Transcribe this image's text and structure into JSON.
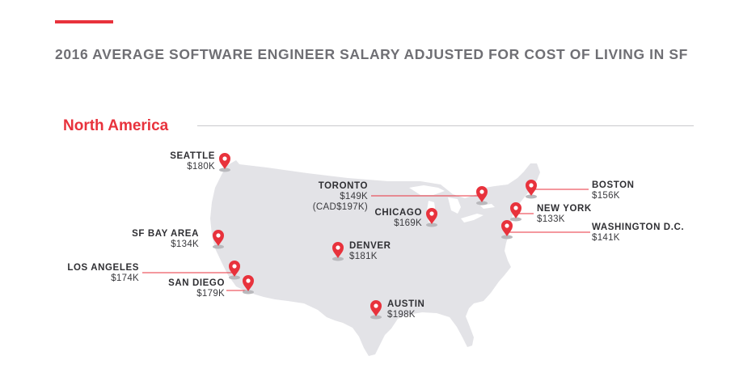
{
  "header": {
    "title": "2016 AVERAGE SOFTWARE ENGINEER SALARY ADJUSTED FOR COST OF LIVING IN SF"
  },
  "region": {
    "name": "North America"
  },
  "colors": {
    "accent": "#e8323c",
    "map_fill": "#e3e3e7",
    "text": "#3a3a3e",
    "title": "#6f6f74"
  },
  "cities": [
    {
      "id": "seattle",
      "name": "SEATTLE",
      "salary": "$180K"
    },
    {
      "id": "sf-bay-area",
      "name": "SF BAY AREA",
      "salary": "$134K"
    },
    {
      "id": "los-angeles",
      "name": "LOS ANGELES",
      "salary": "$174K"
    },
    {
      "id": "san-diego",
      "name": "SAN DIEGO",
      "salary": "$179K"
    },
    {
      "id": "denver",
      "name": "DENVER",
      "salary": "$181K"
    },
    {
      "id": "austin",
      "name": "AUSTIN",
      "salary": "$198K"
    },
    {
      "id": "chicago",
      "name": "CHICAGO",
      "salary": "$169K"
    },
    {
      "id": "toronto",
      "name": "TORONTO",
      "salary": "$149K",
      "salary_local": "(CAD$197K)"
    },
    {
      "id": "boston",
      "name": "BOSTON",
      "salary": "$156K"
    },
    {
      "id": "new-york",
      "name": "NEW YORK",
      "salary": "$133K"
    },
    {
      "id": "washington-dc",
      "name": "WASHINGTON D.C.",
      "salary": "$141K"
    }
  ]
}
